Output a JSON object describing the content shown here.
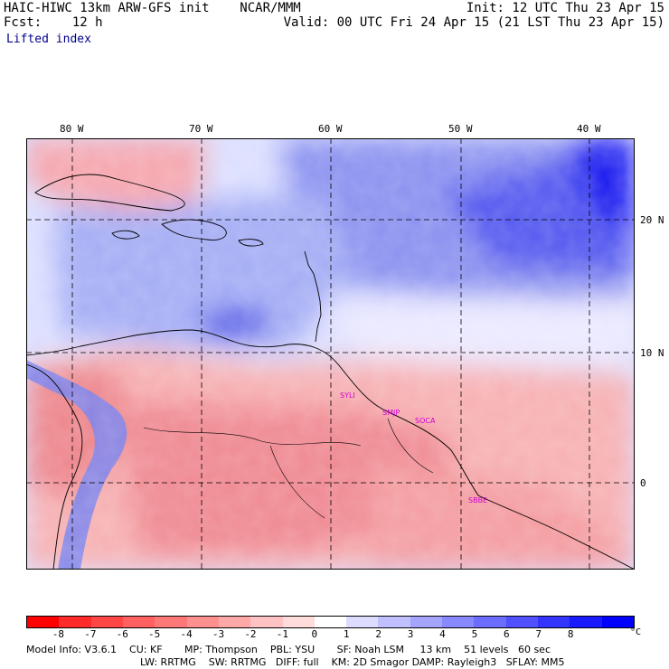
{
  "header": {
    "title": "HAIC-HIWC 13km ARW-GFS init    NCAR/MMM",
    "fcst_label": "Fcst:",
    "fcst_value": "12 h",
    "init": "Init: 12 UTC Thu 23 Apr 15",
    "valid": "Valid: 00 UTC Fri 24 Apr 15 (21 LST Thu 23 Apr 15)",
    "field": "Lifted index"
  },
  "map": {
    "lon_labels": [
      "80 W",
      "70 W",
      "60 W",
      "50 W",
      "40 W"
    ],
    "lat_labels": [
      "20 N",
      "10 N",
      "0"
    ],
    "stations": [
      "SYLI",
      "SMJP",
      "SOCA",
      "SBBE"
    ]
  },
  "colorbar": {
    "ticks": [
      "-8",
      "-7",
      "-6",
      "-5",
      "-4",
      "-3",
      "-2",
      "-1",
      "0",
      "1",
      "2",
      "3",
      "4",
      "5",
      "6",
      "7",
      "8"
    ],
    "unit": "°C",
    "colors": [
      "#ff0000",
      "#ff2a2a",
      "#ff4646",
      "#ff6060",
      "#ff7878",
      "#ff9090",
      "#ffa8a8",
      "#ffc2c2",
      "#ffdcdc",
      "#ffffff",
      "#dcdcff",
      "#c0c0ff",
      "#a4a4ff",
      "#8888ff",
      "#6c6cff",
      "#5050ff",
      "#3434ff",
      "#1a1aff",
      "#0000ff"
    ]
  },
  "model_info": {
    "line1": "Model Info: V3.6.1    CU: KF       MP: Thompson    PBL: YSU       SF: Noah LSM     13 km    51 levels   60 sec",
    "line2": "LW: RRTMG    SW: RRTMG   DIFF: full    KM: 2D Smagor DAMP: Rayleigh3   SFLAY: MM5"
  },
  "field_summary": {
    "positive_stable_region": "Atlantic north/east, values 3 to 8 °C",
    "negative_unstable_region": "South America land and Caribbean north edge, values -1 to -5 °C"
  }
}
